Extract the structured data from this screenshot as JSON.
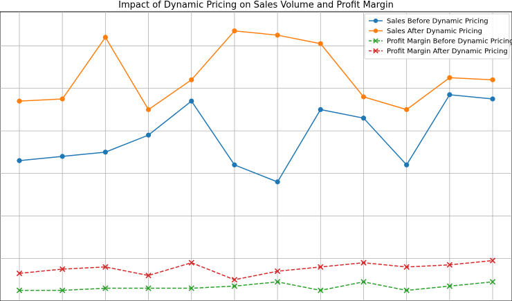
{
  "chart_data": {
    "type": "line",
    "title": "Impact of Dynamic Pricing on Sales Volume and Profit Margin",
    "xlabel": "",
    "ylabel": "",
    "x": [
      1,
      2,
      3,
      4,
      5,
      6,
      7,
      8,
      9,
      10,
      11,
      12
    ],
    "xlim": [
      0.55,
      12.45
    ],
    "ylim": [
      0,
      68
    ],
    "y_gridlines": [
      10,
      20,
      30,
      40,
      50,
      60
    ],
    "grid": true,
    "legend_position": "top-right",
    "series": [
      {
        "name": "Sales Before Dynamic Pricing",
        "values": [
          33,
          34,
          35,
          39,
          47,
          32,
          28,
          45,
          43,
          32,
          48.5,
          47.5
        ],
        "color": "#1f77b4",
        "marker": "circle",
        "linestyle": "solid"
      },
      {
        "name": "Sales After Dynamic Pricing",
        "values": [
          47,
          47.5,
          62,
          45,
          52,
          63.5,
          62.5,
          60.5,
          48,
          45,
          52.5,
          52
        ],
        "color": "#ff7f0e",
        "marker": "circle",
        "linestyle": "solid"
      },
      {
        "name": "Profit Margin Before Dynamic Pricing",
        "values": [
          2.5,
          2.5,
          3,
          3,
          3,
          3.5,
          4.5,
          2.5,
          4.5,
          2.5,
          3.5,
          4.5
        ],
        "color": "#2ca02c",
        "marker": "x",
        "linestyle": "dashed"
      },
      {
        "name": "Profit Margin After Dynamic Pricing",
        "values": [
          6.5,
          7.5,
          8,
          6,
          9,
          5,
          7,
          8,
          9,
          8,
          8.5,
          9.5
        ],
        "color": "#d62728",
        "marker": "x",
        "linestyle": "dashed"
      }
    ]
  }
}
